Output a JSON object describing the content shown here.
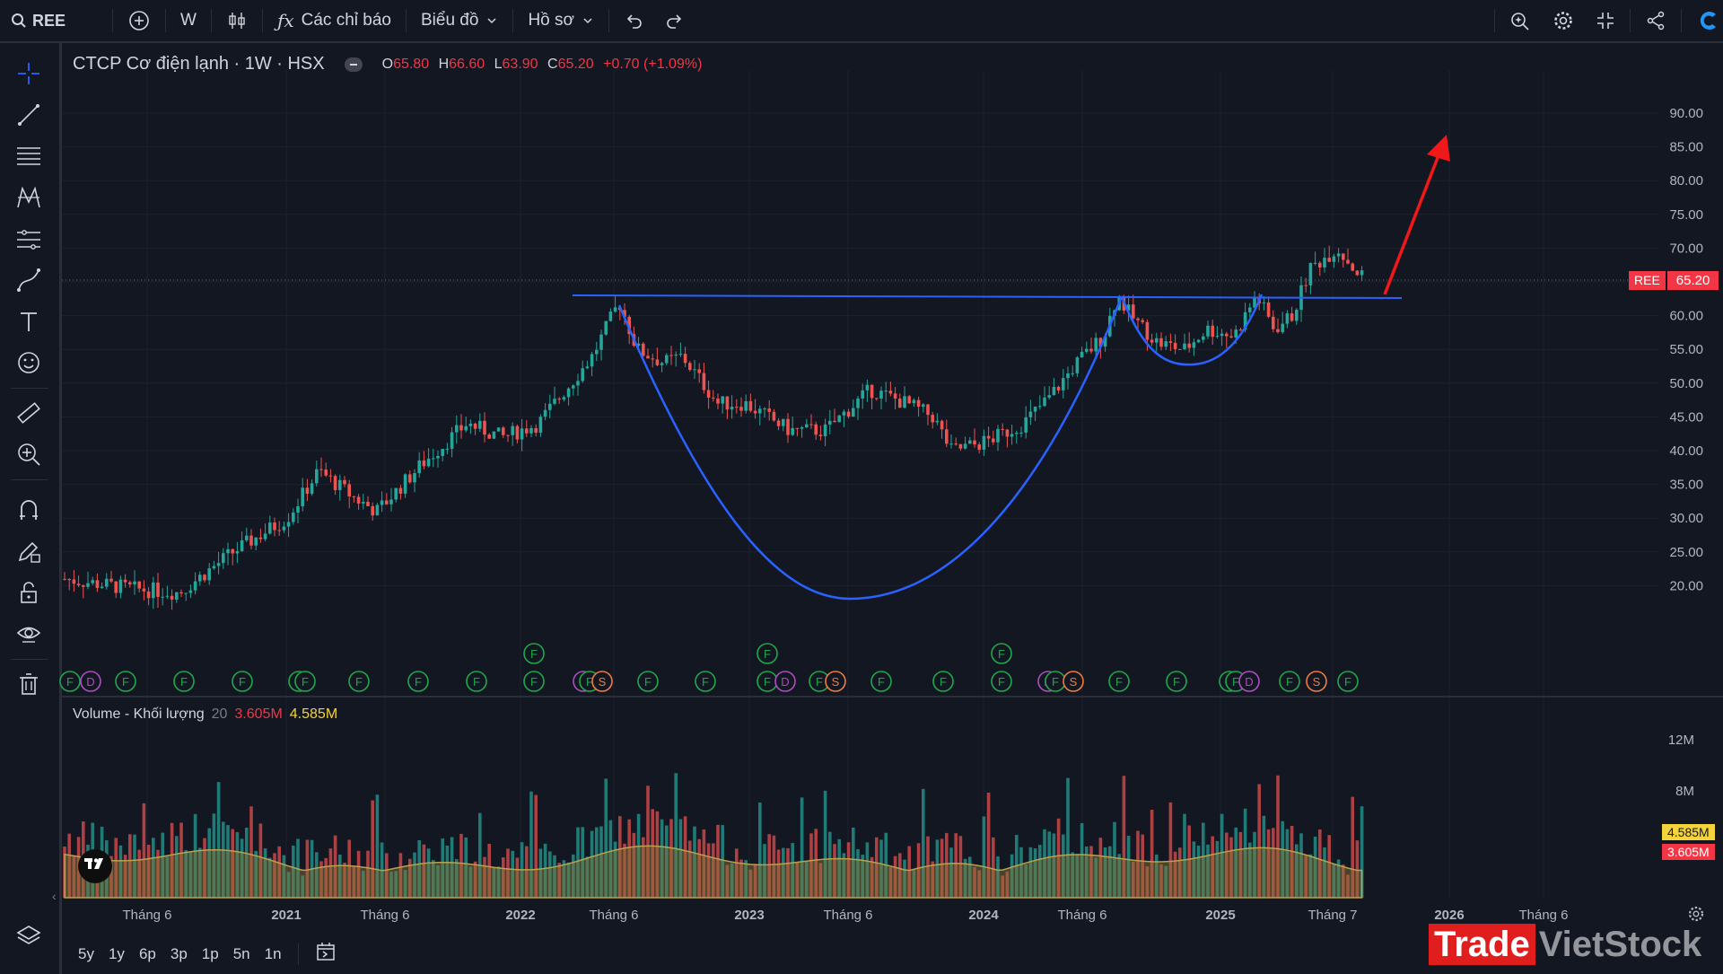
{
  "topbar": {
    "symbol": "REE",
    "interval": "W",
    "indicators_label": "Các chỉ báo",
    "chart_menu_label": "Biểu đồ",
    "profile_menu_label": "Hồ sơ"
  },
  "legend": {
    "title": "CTCP Cơ điện lạnh · 1W · HSX",
    "o_label": "O",
    "o": "65.80",
    "h_label": "H",
    "h": "66.60",
    "l_label": "L",
    "l": "63.90",
    "c_label": "C",
    "c": "65.20",
    "change": "+0.70 (+1.09%)"
  },
  "volume_legend": {
    "name": "Volume - Khối lượng",
    "length": "20",
    "v1": "3.605M",
    "v2": "4.585M"
  },
  "price_axis": [
    "90.00",
    "85.00",
    "80.00",
    "75.00",
    "70.00",
    "65.00",
    "60.00",
    "55.00",
    "50.00",
    "45.00",
    "40.00",
    "35.00",
    "30.00",
    "25.00",
    "20.00"
  ],
  "volume_axis": [
    "12M",
    "8M"
  ],
  "price_badge": {
    "symbol": "REE",
    "price": "65.20"
  },
  "volume_badges": {
    "ma": "4.585M",
    "vol": "3.605M"
  },
  "time_axis": [
    {
      "label": "Tháng 6",
      "bold": false
    },
    {
      "label": "2021",
      "bold": true
    },
    {
      "label": "Tháng 6",
      "bold": false
    },
    {
      "label": "2022",
      "bold": true
    },
    {
      "label": "Tháng 6",
      "bold": false
    },
    {
      "label": "2023",
      "bold": true
    },
    {
      "label": "Tháng 6",
      "bold": false
    },
    {
      "label": "2024",
      "bold": true
    },
    {
      "label": "Tháng 6",
      "bold": false
    },
    {
      "label": "2025",
      "bold": true
    },
    {
      "label": "Tháng 7",
      "bold": false
    },
    {
      "label": "2026",
      "bold": true
    },
    {
      "label": "Tháng 6",
      "bold": false
    }
  ],
  "ranges": [
    "5y",
    "1y",
    "6p",
    "3p",
    "1p",
    "5n",
    "1n"
  ],
  "event_markers": [
    "F",
    "D",
    "S"
  ],
  "watermark": {
    "part1": "Trade",
    "part2": "VietStock"
  },
  "colors": {
    "bg": "#131722",
    "up": "#26a69a",
    "down": "#ef5350",
    "pattern": "#2962ff",
    "arrow": "#f01818",
    "ma": "#8a7a3a"
  }
}
